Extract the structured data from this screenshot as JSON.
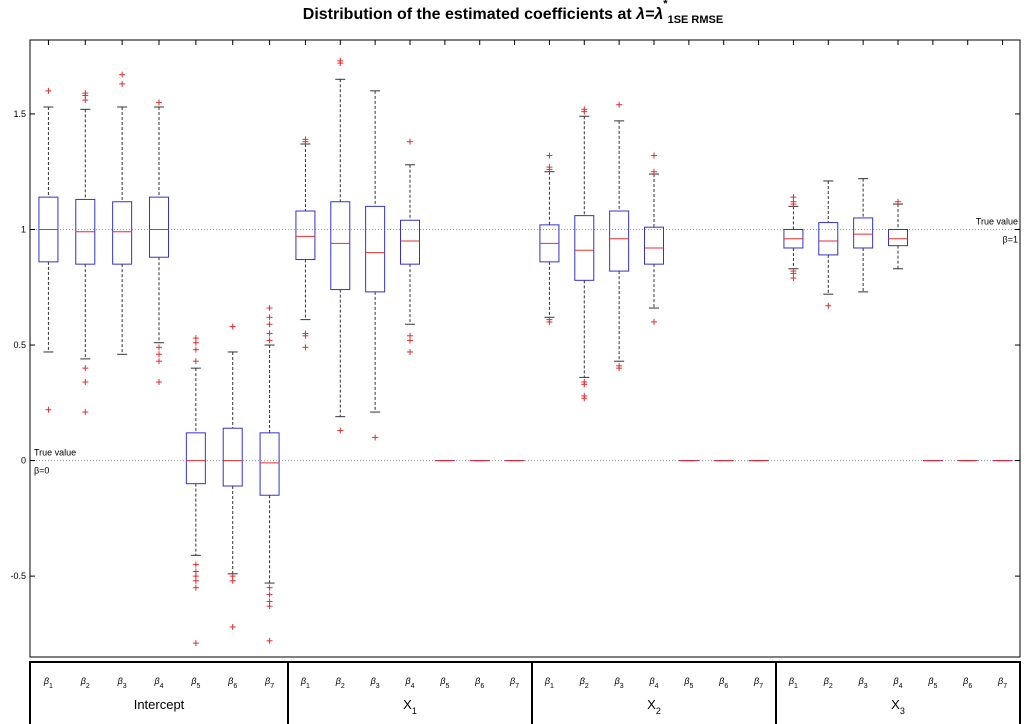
{
  "chart_data": {
    "type": "boxplot",
    "title": "Distribution of the estimated coefficients at λ=λ*1SE RMSE",
    "title_parts": {
      "main": "Distribution of the estimated coefficients at ",
      "lambda": "λ=λ",
      "sup": "*",
      "sub": "1SE RMSE"
    },
    "ylim": [
      -0.85,
      1.82
    ],
    "yticks": [
      -0.5,
      0,
      0.5,
      1,
      1.5
    ],
    "ytick_labels": [
      "-0.5",
      "0",
      "0.5",
      "1",
      "1.5"
    ],
    "colors": {
      "box": "#3333cc",
      "median": "#e03030",
      "outlier": "#e03030",
      "whisker": "#333333",
      "reference": "#999999"
    },
    "groups": [
      {
        "label": "Intercept",
        "sub": "",
        "boxes": [
          {
            "label": "β1",
            "q1": 0.86,
            "median": 1.0,
            "q3": 1.14,
            "whisker_low": 0.47,
            "whisker_high": 1.53,
            "outliers": [
              1.6,
              0.22
            ]
          },
          {
            "label": "β2",
            "q1": 0.85,
            "median": 0.99,
            "q3": 1.13,
            "whisker_low": 0.44,
            "whisker_high": 1.52,
            "outliers": [
              1.59,
              1.58,
              1.56,
              0.4,
              0.34,
              0.21
            ]
          },
          {
            "label": "β3",
            "q1": 0.85,
            "median": 0.99,
            "q3": 1.12,
            "whisker_low": 0.46,
            "whisker_high": 1.53,
            "outliers": [
              1.67,
              1.63
            ]
          },
          {
            "label": "β4",
            "q1": 0.88,
            "median": 1.0,
            "q3": 1.14,
            "whisker_low": 0.51,
            "whisker_high": 1.53,
            "outliers": [
              1.55,
              0.49,
              0.46,
              0.43,
              0.34
            ]
          },
          {
            "label": "β5",
            "q1": -0.1,
            "median": 0.0,
            "q3": 0.12,
            "whisker_low": -0.41,
            "whisker_high": 0.4,
            "outliers": [
              0.53,
              0.51,
              0.48,
              0.43,
              -0.45,
              -0.48,
              -0.5,
              -0.52,
              -0.55,
              -0.79
            ]
          },
          {
            "label": "β6",
            "q1": -0.11,
            "median": 0.0,
            "q3": 0.14,
            "whisker_low": -0.49,
            "whisker_high": 0.47,
            "outliers": [
              0.58,
              -0.5,
              -0.52,
              -0.72
            ]
          },
          {
            "label": "β7",
            "q1": -0.15,
            "median": -0.01,
            "q3": 0.12,
            "whisker_low": -0.53,
            "whisker_high": 0.5,
            "outliers": [
              0.66,
              0.62,
              0.59,
              0.55,
              0.52,
              -0.55,
              -0.58,
              -0.61,
              -0.63,
              -0.78
            ]
          }
        ]
      },
      {
        "label": "X",
        "sub": "1",
        "boxes": [
          {
            "label": "β1",
            "q1": 0.87,
            "median": 0.97,
            "q3": 1.08,
            "whisker_low": 0.61,
            "whisker_high": 1.37,
            "outliers": [
              1.39,
              1.38,
              0.55,
              0.54,
              0.49
            ]
          },
          {
            "label": "β2",
            "q1": 0.74,
            "median": 0.94,
            "q3": 1.12,
            "whisker_low": 0.19,
            "whisker_high": 1.65,
            "outliers": [
              1.73,
              1.72,
              0.13
            ]
          },
          {
            "label": "β3",
            "q1": 0.73,
            "median": 0.9,
            "q3": 1.1,
            "whisker_low": 0.21,
            "whisker_high": 1.6,
            "outliers": [
              0.1
            ]
          },
          {
            "label": "β4",
            "q1": 0.85,
            "median": 0.95,
            "q3": 1.04,
            "whisker_low": 0.59,
            "whisker_high": 1.28,
            "outliers": [
              1.38,
              0.54,
              0.52,
              0.47
            ]
          },
          {
            "label": "β5",
            "q1": 0,
            "median": 0,
            "q3": 0,
            "whisker_low": 0,
            "whisker_high": 0,
            "outliers": []
          },
          {
            "label": "β6",
            "q1": 0,
            "median": 0,
            "q3": 0,
            "whisker_low": 0,
            "whisker_high": 0,
            "outliers": []
          },
          {
            "label": "β7",
            "q1": 0,
            "median": 0,
            "q3": 0,
            "whisker_low": 0,
            "whisker_high": 0,
            "outliers": []
          }
        ]
      },
      {
        "label": "X",
        "sub": "2",
        "boxes": [
          {
            "label": "β1",
            "q1": 0.86,
            "median": 0.94,
            "q3": 1.02,
            "whisker_low": 0.62,
            "whisker_high": 1.25,
            "outliers": [
              1.32,
              1.27,
              1.26,
              0.61,
              0.6
            ]
          },
          {
            "label": "β2",
            "q1": 0.78,
            "median": 0.91,
            "q3": 1.06,
            "whisker_low": 0.36,
            "whisker_high": 1.49,
            "outliers": [
              1.52,
              1.51,
              0.34,
              0.33,
              0.28,
              0.27
            ]
          },
          {
            "label": "β3",
            "q1": 0.82,
            "median": 0.96,
            "q3": 1.08,
            "whisker_low": 0.43,
            "whisker_high": 1.47,
            "outliers": [
              1.54,
              0.41,
              0.4
            ]
          },
          {
            "label": "β4",
            "q1": 0.85,
            "median": 0.92,
            "q3": 1.01,
            "whisker_low": 0.66,
            "whisker_high": 1.24,
            "outliers": [
              1.32,
              1.25,
              0.6
            ]
          },
          {
            "label": "β5",
            "q1": 0,
            "median": 0,
            "q3": 0,
            "whisker_low": 0,
            "whisker_high": 0,
            "outliers": []
          },
          {
            "label": "β6",
            "q1": 0,
            "median": 0,
            "q3": 0,
            "whisker_low": 0,
            "whisker_high": 0,
            "outliers": []
          },
          {
            "label": "β7",
            "q1": 0,
            "median": 0,
            "q3": 0,
            "whisker_low": 0,
            "whisker_high": 0,
            "outliers": []
          }
        ]
      },
      {
        "label": "X",
        "sub": "3",
        "boxes": [
          {
            "label": "β1",
            "q1": 0.92,
            "median": 0.96,
            "q3": 1.0,
            "whisker_low": 0.83,
            "whisker_high": 1.1,
            "outliers": [
              1.14,
              1.12,
              1.11,
              0.82,
              0.81,
              0.79
            ]
          },
          {
            "label": "β2",
            "q1": 0.89,
            "median": 0.95,
            "q3": 1.03,
            "whisker_low": 0.72,
            "whisker_high": 1.21,
            "outliers": [
              0.67
            ]
          },
          {
            "label": "β3",
            "q1": 0.92,
            "median": 0.98,
            "q3": 1.05,
            "whisker_low": 0.73,
            "whisker_high": 1.22,
            "outliers": []
          },
          {
            "label": "β4",
            "q1": 0.93,
            "median": 0.96,
            "q3": 1.0,
            "whisker_low": 0.83,
            "whisker_high": 1.11,
            "outliers": [
              1.12
            ]
          },
          {
            "label": "β5",
            "q1": 0,
            "median": 0,
            "q3": 0,
            "whisker_low": 0,
            "whisker_high": 0,
            "outliers": []
          },
          {
            "label": "β6",
            "q1": 0,
            "median": 0,
            "q3": 0,
            "whisker_low": 0,
            "whisker_high": 0,
            "outliers": []
          },
          {
            "label": "β7",
            "q1": 0,
            "median": 0,
            "q3": 0,
            "whisker_low": 0,
            "whisker_high": 0,
            "outliers": []
          }
        ]
      }
    ],
    "reference_lines": [
      {
        "y": 1,
        "label_line1": "True value",
        "label_line2": "β=1",
        "side": "right"
      },
      {
        "y": 0,
        "label_line1": "True value",
        "label_line2": "β=0",
        "side": "left"
      }
    ]
  }
}
